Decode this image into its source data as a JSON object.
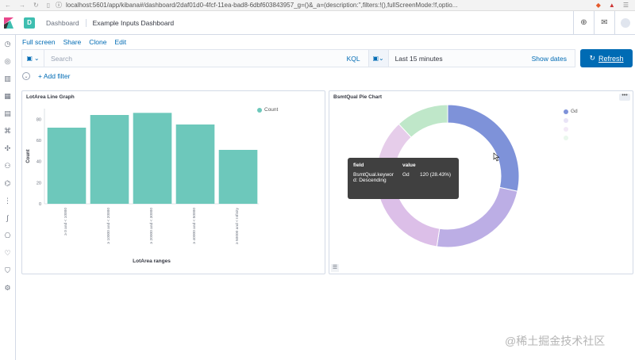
{
  "browser": {
    "url": "localhost:5601/app/kibana#/dashboard/2daf01d0-4fcf-11ea-bad8-6dbf603843957_g=()&_a=(description:'',filters:!(),fullScreenMode:!f,optio..."
  },
  "header": {
    "space_initial": "D",
    "breadcrumb_parent": "Dashboard",
    "breadcrumb_current": "Example Inputs Dashboard"
  },
  "top_menu": [
    "Full screen",
    "Share",
    "Clone",
    "Edit"
  ],
  "query_bar": {
    "search_placeholder": "Search",
    "language": "KQL",
    "time_range": "Last 15 minutes",
    "show_dates": "Show dates",
    "refresh_label": "Refresh"
  },
  "filter_bar": {
    "add_filter": "+ Add filter"
  },
  "panel1": {
    "title": "LotArea Line Graph"
  },
  "panel2": {
    "title": "BsmtQual Pie Chart"
  },
  "tooltip": {
    "col_field": "field",
    "col_value": "value",
    "field_line1": "BsmtQual.keywor",
    "field_line2": "d: Descending",
    "value_label": "Gd",
    "value": "120 (28.43%)"
  },
  "watermark": "@稀土掘金技术社区",
  "chart_data": [
    {
      "type": "bar",
      "title": "LotArea Line Graph",
      "xlabel": "LotArea ranges",
      "ylabel": "Count",
      "ylim": [
        0,
        90
      ],
      "y_ticks": [
        0,
        20,
        40,
        60,
        80
      ],
      "categories": [
        "≥ 0 and < 10000",
        "≥ 10000 and < 20000",
        "≥ 20000 and < 30000",
        "≥ 40000 and < 50000",
        "≥ 50000 and < Infinity"
      ],
      "series": [
        {
          "name": "Count",
          "values": [
            72,
            84,
            86,
            75,
            51
          ],
          "color": "#6dc8bb"
        }
      ],
      "legend_position": "top-right"
    },
    {
      "type": "pie",
      "title": "BsmtQual Pie Chart",
      "donut": true,
      "slices": [
        {
          "label": "Gd",
          "value": 28.43,
          "color": "#7e92d9"
        },
        {
          "label": "",
          "value": 24,
          "color": "#bcaee5"
        },
        {
          "label": "",
          "value": 22,
          "color": "#dcbfe8"
        },
        {
          "label": "",
          "value": 13.57,
          "color": "#e6cdea"
        },
        {
          "label": "",
          "value": 12,
          "color": "#bfe7c9"
        }
      ],
      "legend_position": "top-right"
    }
  ]
}
